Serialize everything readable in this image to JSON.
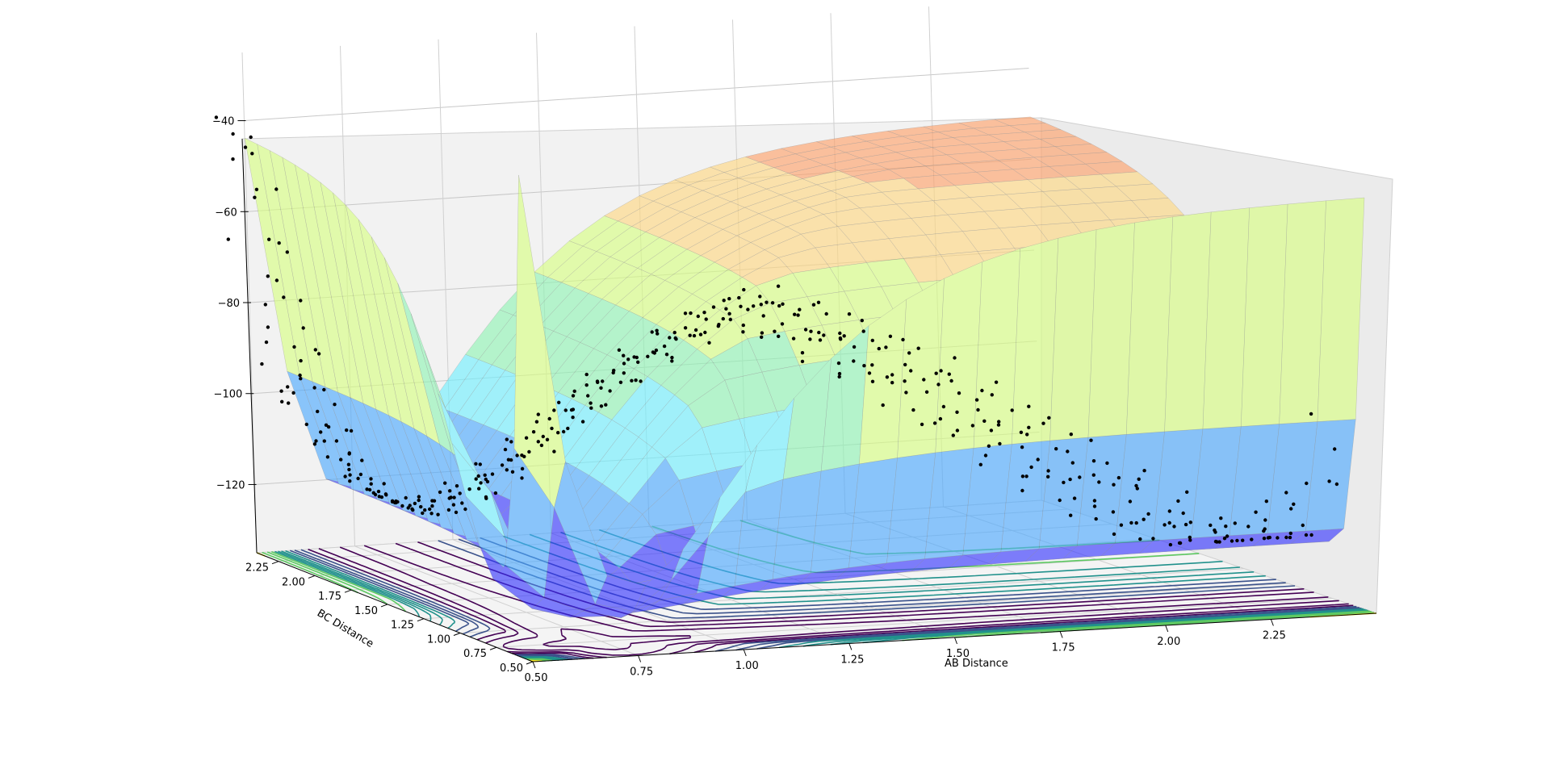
{
  "chart_data": {
    "type": "surface3d",
    "title": "",
    "xlabel": "AB Distance",
    "ylabel": "BC Distance",
    "zlabel": "",
    "x_ticks": [
      "0.50",
      "0.75",
      "1.00",
      "1.25",
      "1.50",
      "1.75",
      "2.00",
      "2.25"
    ],
    "y_ticks": [
      "0.50",
      "0.75",
      "1.00",
      "1.25",
      "1.50",
      "1.75",
      "2.00",
      "2.25"
    ],
    "z_ticks": [
      "−40",
      "−60",
      "−80",
      "−100",
      "−120"
    ],
    "xlim": [
      0.5,
      2.5
    ],
    "ylim": [
      0.5,
      2.4
    ],
    "zlim": [
      -135,
      -25
    ],
    "surface_colormap": "jet (transparent)",
    "contour_colormap": "viridis",
    "scatter_color": "#000000",
    "grid": true,
    "surface_color_bands": [
      "#3333ff",
      "#4aa8ff",
      "#6ff0ff",
      "#8ff5b4",
      "#d8ff80",
      "#ffd880",
      "#ffa068",
      "#f08080"
    ]
  }
}
